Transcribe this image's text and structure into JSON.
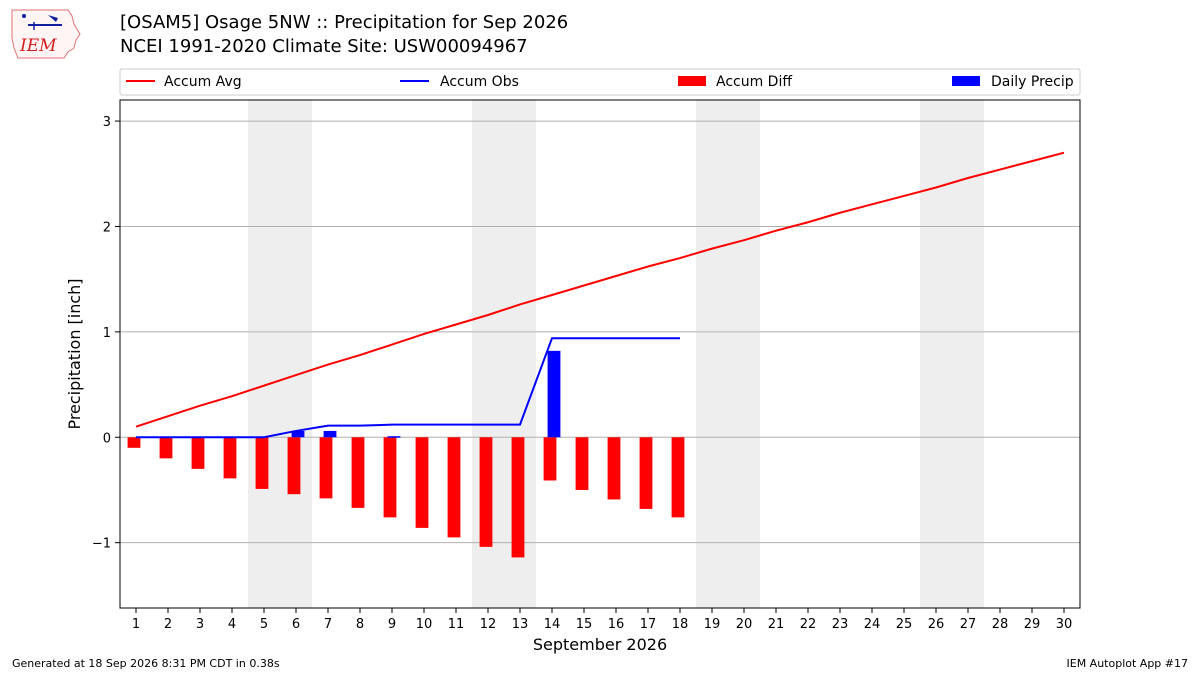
{
  "header": {
    "title_line1": "[OSAM5] Osage 5NW :: Precipitation for Sep 2026",
    "title_line2": "NCEI 1991-2020 Climate Site: USW00094967"
  },
  "logo": {
    "text": "IEM",
    "icon": "iem-iowa-logo-icon"
  },
  "footer": {
    "generated": "Generated at 18 Sep 2026 8:31 PM CDT in 0.38s",
    "app": "IEM Autoplot App #17"
  },
  "colors": {
    "accum_avg": "#ff0000",
    "accum_obs": "#0000ff",
    "accum_diff": "#ff0000",
    "daily_precip": "#0000ff",
    "weekend_shade": "#eeeeee",
    "grid": "#b0b0b0"
  },
  "chart_data": {
    "type": "bar",
    "xlabel": "September 2026",
    "ylabel": "Precipitation [inch]",
    "xlim": [
      0.5,
      30.5
    ],
    "ylim": [
      -1.62,
      3.2
    ],
    "x_ticks": [
      1,
      2,
      3,
      4,
      5,
      6,
      7,
      8,
      9,
      10,
      11,
      12,
      13,
      14,
      15,
      16,
      17,
      18,
      19,
      20,
      21,
      22,
      23,
      24,
      25,
      26,
      27,
      28,
      29,
      30
    ],
    "y_ticks": [
      -1,
      0,
      1,
      2,
      3
    ],
    "y_tick_labels": [
      "−1",
      "0",
      "1",
      "2",
      "3"
    ],
    "grid": "horizontal",
    "legend_position": "top",
    "shaded_weekends": [
      [
        5,
        6
      ],
      [
        12,
        13
      ],
      [
        19,
        20
      ],
      [
        26,
        27
      ]
    ],
    "series": [
      {
        "name": "Accum Avg",
        "type": "line",
        "x": [
          1,
          2,
          3,
          4,
          5,
          6,
          7,
          8,
          9,
          10,
          11,
          12,
          13,
          14,
          15,
          16,
          17,
          18,
          19,
          20,
          21,
          22,
          23,
          24,
          25,
          26,
          27,
          28,
          29,
          30
        ],
        "values": [
          0.1,
          0.2,
          0.3,
          0.39,
          0.49,
          0.59,
          0.69,
          0.78,
          0.88,
          0.98,
          1.07,
          1.16,
          1.26,
          1.35,
          1.44,
          1.53,
          1.62,
          1.7,
          1.79,
          1.87,
          1.96,
          2.04,
          2.13,
          2.21,
          2.29,
          2.37,
          2.46,
          2.54,
          2.62,
          2.7
        ]
      },
      {
        "name": "Accum Obs",
        "type": "line",
        "x": [
          1,
          2,
          3,
          4,
          5,
          6,
          7,
          8,
          9,
          10,
          11,
          12,
          13,
          14,
          15,
          16,
          17,
          18
        ],
        "values": [
          0.0,
          0.0,
          0.0,
          0.0,
          0.0,
          0.06,
          0.11,
          0.11,
          0.12,
          0.12,
          0.12,
          0.12,
          0.12,
          0.94,
          0.94,
          0.94,
          0.94,
          0.94
        ]
      },
      {
        "name": "Accum Diff",
        "type": "bar",
        "x": [
          1,
          2,
          3,
          4,
          5,
          6,
          7,
          8,
          9,
          10,
          11,
          12,
          13,
          14,
          15,
          16,
          17,
          18
        ],
        "values": [
          -0.1,
          -0.2,
          -0.3,
          -0.39,
          -0.49,
          -0.54,
          -0.58,
          -0.67,
          -0.76,
          -0.86,
          -0.95,
          -1.04,
          -1.14,
          -0.41,
          -0.5,
          -0.59,
          -0.68,
          -0.76
        ]
      },
      {
        "name": "Daily Precip",
        "type": "bar",
        "x": [
          6,
          7,
          9,
          14
        ],
        "values": [
          0.06,
          0.06,
          0.01,
          0.82
        ]
      }
    ]
  }
}
